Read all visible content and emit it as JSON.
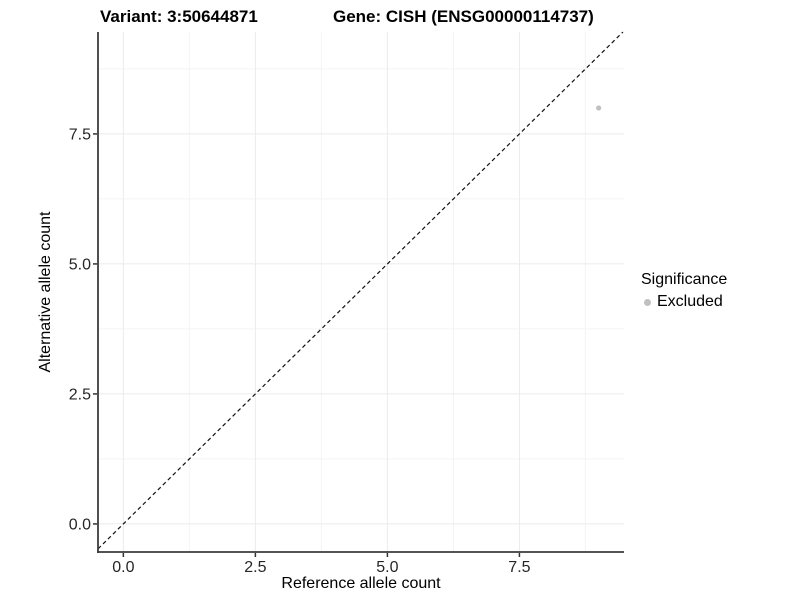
{
  "header": {
    "variant_title": "Variant: 3:50644871",
    "gene_title": "Gene: CISH (ENSG00000114737)"
  },
  "chart_data": {
    "type": "scatter",
    "xlabel": "Reference allele count",
    "ylabel": "Alternative allele count",
    "x_ticks": [
      {
        "value": 0,
        "label": "0.0"
      },
      {
        "value": 2.5,
        "label": "2.5"
      },
      {
        "value": 5,
        "label": "5.0"
      },
      {
        "value": 7.5,
        "label": "7.5"
      }
    ],
    "y_ticks": [
      {
        "value": 0,
        "label": "0.0"
      },
      {
        "value": 2.5,
        "label": "2.5"
      },
      {
        "value": 5,
        "label": "5.0"
      },
      {
        "value": 7.5,
        "label": "7.5"
      }
    ],
    "x_minor_breaks": [
      1.25,
      3.75,
      6.25,
      8.75
    ],
    "y_minor_breaks": [
      1.25,
      3.75,
      6.25,
      8.75
    ],
    "xlim": [
      -0.48,
      9.48
    ],
    "ylim": [
      -0.54,
      9.46
    ],
    "grid": "major and minor gridlines, very light gray on white panel",
    "reference_line": {
      "slope": 1,
      "intercept": 0,
      "style": "dashed",
      "color": "#111111"
    },
    "series": [
      {
        "name": "Excluded",
        "color": "#c0c0c0",
        "points": [
          {
            "x": 9,
            "y": 8
          }
        ]
      }
    ],
    "legend": {
      "title": "Significance",
      "position": "right",
      "items": [
        {
          "label": "Excluded",
          "color": "#c0c0c0"
        }
      ]
    }
  },
  "colors": {
    "background": "#ffffff",
    "axis_line": "#3c3c3c",
    "tick_mark": "#333333",
    "tick_label": "#262626",
    "grid_major": "#ebebeb",
    "grid_minor": "#f4f4f4"
  }
}
